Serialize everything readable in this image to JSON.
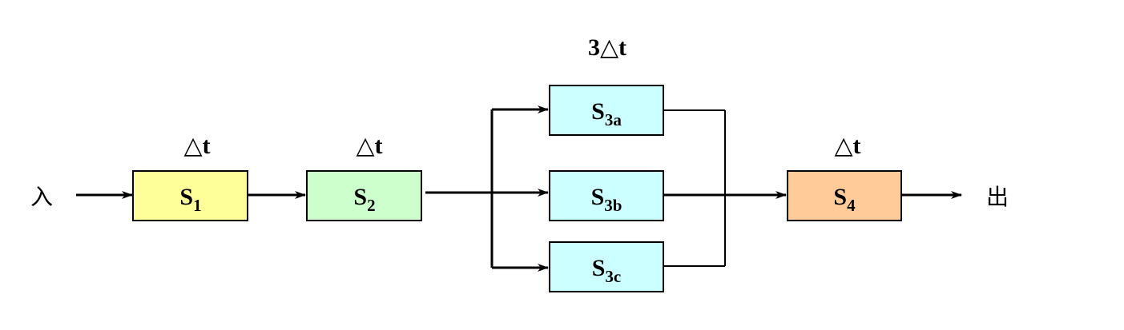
{
  "io": {
    "input": "入",
    "output": "出"
  },
  "stages": [
    {
      "id": "s1",
      "main": "S",
      "sub": "1",
      "color": "#ffff99"
    },
    {
      "id": "s2",
      "main": "S",
      "sub": "2",
      "color": "#ccffcc"
    },
    {
      "id": "s3a",
      "main": "S",
      "sub": "3a",
      "color": "#ccffff"
    },
    {
      "id": "s3b",
      "main": "S",
      "sub": "3b",
      "color": "#ccffff"
    },
    {
      "id": "s3c",
      "main": "S",
      "sub": "3c",
      "color": "#ccffff"
    },
    {
      "id": "s4",
      "main": "S",
      "sub": "4",
      "color": "#ffcc99"
    }
  ],
  "time_labels": {
    "s1": "△t",
    "s2": "△t",
    "s3": "3△t",
    "s4": "△t"
  }
}
